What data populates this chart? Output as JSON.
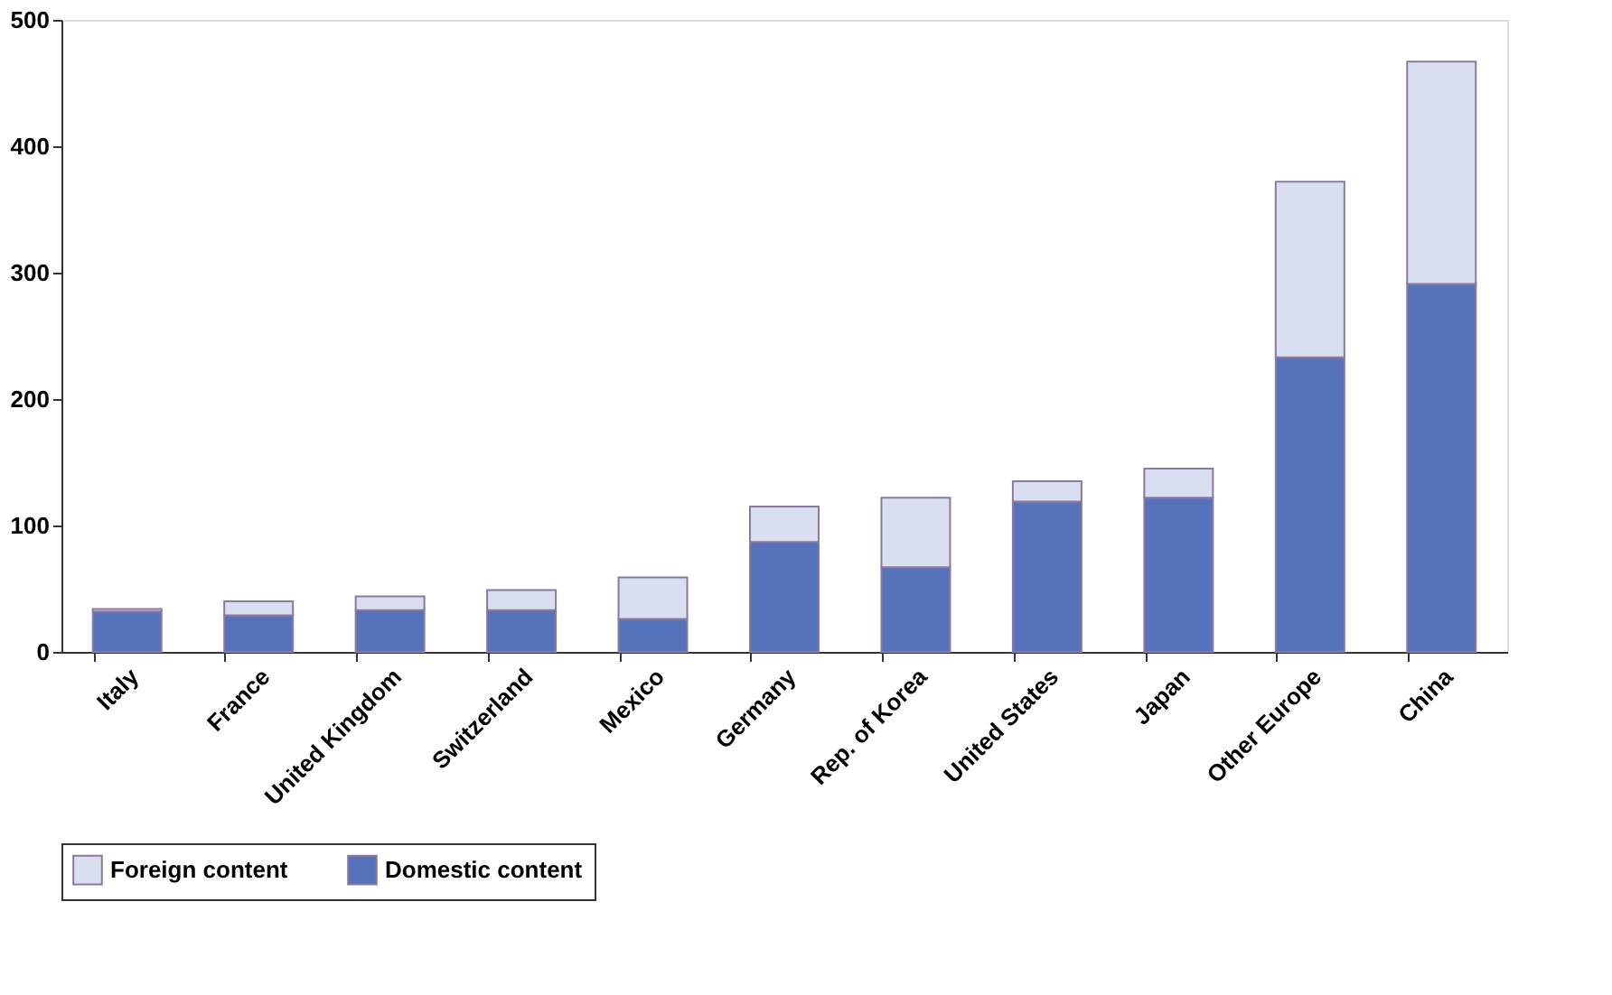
{
  "chart_data": {
    "type": "bar",
    "stacked": true,
    "categories": [
      "Italy",
      "France",
      "United Kingdom",
      "Switzerland",
      "Mexico",
      "Germany",
      "Rep. of Korea",
      "United States",
      "Japan",
      "Other Europe",
      "China"
    ],
    "series": [
      {
        "name": "Domestic content",
        "color": "#5672bb",
        "values": [
          32,
          29,
          33,
          33,
          26,
          87,
          67,
          119,
          122,
          233,
          291
        ]
      },
      {
        "name": "Foreign content",
        "color": "#d9dff0",
        "values": [
          2,
          11,
          11,
          16,
          33,
          28,
          55,
          16,
          23,
          139,
          176
        ]
      }
    ],
    "ylim": [
      0,
      500
    ],
    "yticks": [
      0,
      100,
      200,
      300,
      400,
      500
    ],
    "grid": false,
    "legend": "bottom"
  }
}
